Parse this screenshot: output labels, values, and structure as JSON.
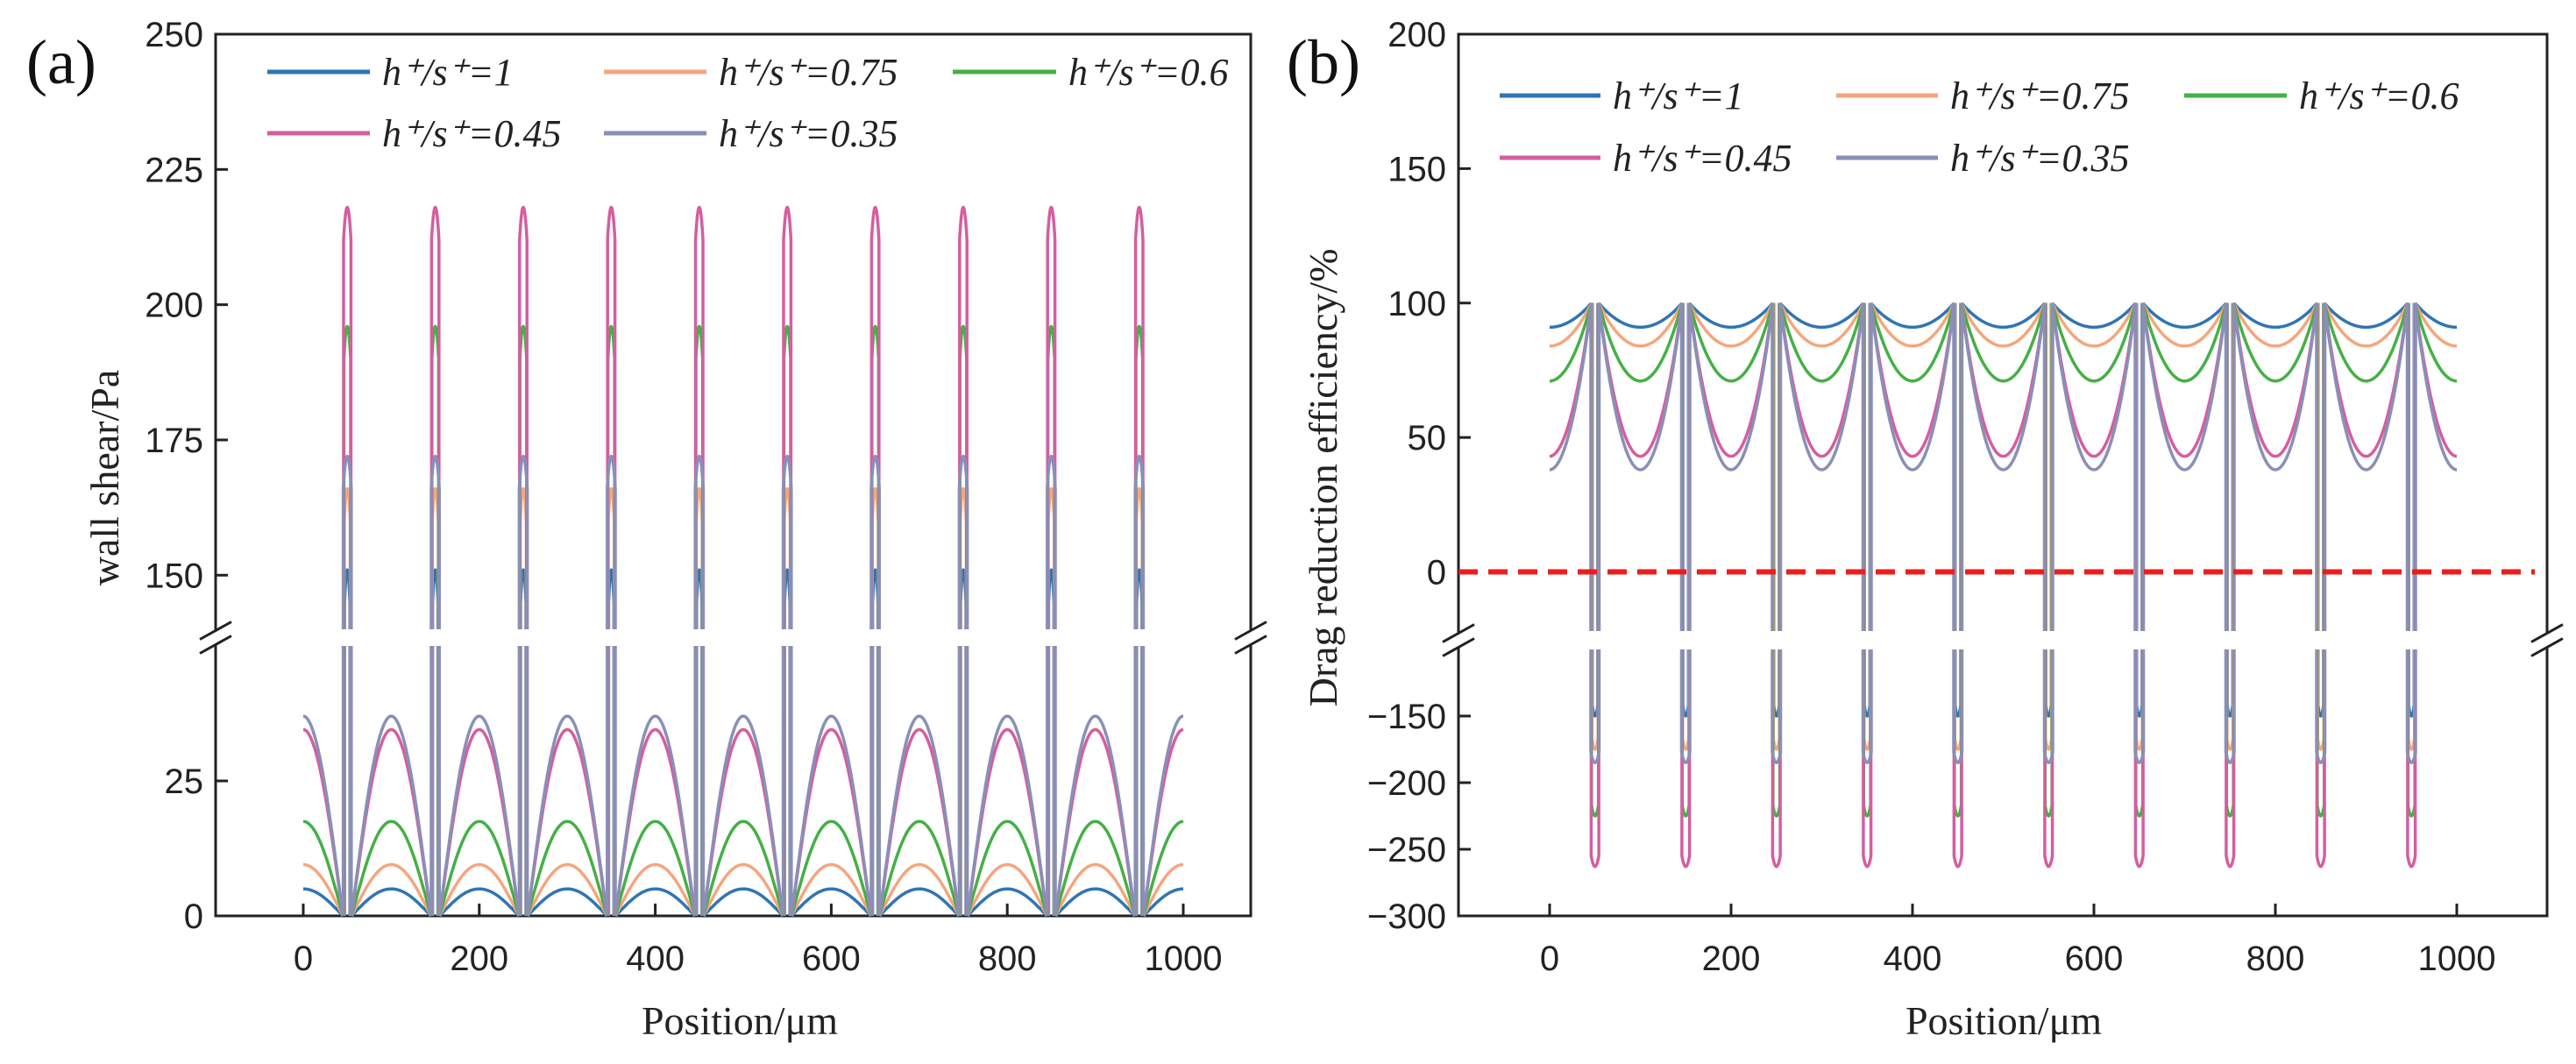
{
  "chart_data": [
    {
      "type": "line",
      "panel_label": "(a)",
      "xlabel": "Position/μm",
      "ylabel": "wall shear/Pa",
      "xlim": [
        -100,
        1100
      ],
      "xticks": [
        "0",
        "200",
        "400",
        "600",
        "800",
        "1000"
      ],
      "y_break": {
        "lower_range": [
          0,
          50
        ],
        "upper_range": [
          140,
          250
        ]
      },
      "yticks_lower": [
        "0",
        "25"
      ],
      "yticks_upper": [
        "150",
        "175",
        "200",
        "225",
        "250"
      ],
      "spike_positions": [
        50,
        150,
        250,
        350,
        450,
        550,
        650,
        750,
        850,
        950
      ],
      "legend_placement": "top",
      "series": [
        {
          "name": "h⁺/s⁺=1",
          "color": "#2e75b6",
          "arch_max": 5,
          "spike_max": 151
        },
        {
          "name": "h⁺/s⁺=0.75",
          "color": "#f5a67c",
          "arch_max": 9.5,
          "spike_max": 166
        },
        {
          "name": "h⁺/s⁺=0.6",
          "color": "#45b045",
          "arch_max": 17.5,
          "spike_max": 196
        },
        {
          "name": "h⁺/s⁺=0.45",
          "color": "#d45ea0",
          "arch_max": 34.5,
          "spike_max": 218
        },
        {
          "name": "h⁺/s⁺=0.35",
          "color": "#8a8fb6",
          "arch_max": 37,
          "spike_max": 172
        }
      ]
    },
    {
      "type": "line",
      "panel_label": "(b)",
      "xlabel": "Position/μm",
      "ylabel": "Drag reduction efficiency/%",
      "xlim": [
        -100,
        1100
      ],
      "xticks": [
        "0",
        "200",
        "400",
        "600",
        "800",
        "1000"
      ],
      "y_break": {
        "lower_range": [
          -300,
          -100
        ],
        "upper_range": [
          -22,
          200
        ]
      },
      "yticks_lower": [
        "−300",
        "−250",
        "−200",
        "−150"
      ],
      "yticks_upper": [
        "0",
        "50",
        "100",
        "150",
        "200"
      ],
      "reference_line": {
        "y": 0,
        "color": "#ee1c1c",
        "style": "dashed"
      },
      "spike_positions": [
        50,
        150,
        250,
        350,
        450,
        550,
        650,
        750,
        850,
        950
      ],
      "legend_placement": "top",
      "series": [
        {
          "name": "h⁺/s⁺=1",
          "color": "#2e75b6",
          "trough_min": 91,
          "spike_min": -150
        },
        {
          "name": "h⁺/s⁺=0.75",
          "color": "#f5a67c",
          "trough_min": 84,
          "spike_min": -175
        },
        {
          "name": "h⁺/s⁺=0.6",
          "color": "#45b045",
          "trough_min": 71,
          "spike_min": -225
        },
        {
          "name": "h⁺/s⁺=0.45",
          "color": "#d45ea0",
          "trough_min": 43,
          "spike_min": -263
        },
        {
          "name": "h⁺/s⁺=0.35",
          "color": "#8a8fb6",
          "trough_min": 38,
          "spike_min": -185
        }
      ]
    }
  ]
}
